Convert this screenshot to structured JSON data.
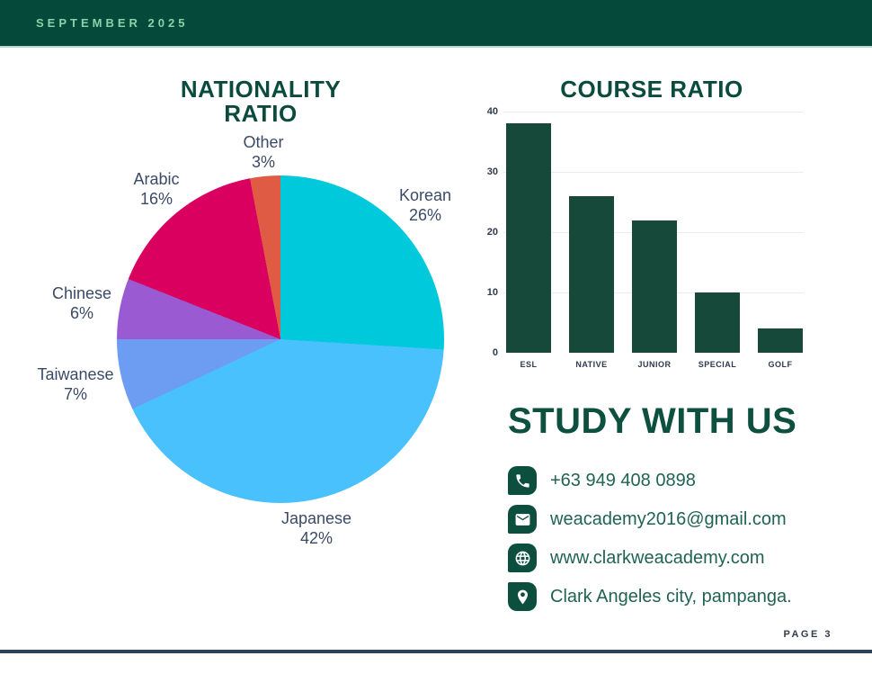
{
  "header": {
    "date": "SEPTEMBER 2025"
  },
  "page": {
    "label": "PAGE 3"
  },
  "colors": {
    "header_bg": "#05493a",
    "header_text": "#85d4aa",
    "title_green": "#0b4b3e",
    "label_slate": "#3b4a66",
    "contact_text": "#206352",
    "icon_bg": "#0d4f3f",
    "bottom_line": "#2e4156"
  },
  "chart_data": [
    {
      "type": "pie",
      "title": "NATIONALITY RATIO",
      "start_angle_deg": 0,
      "direction": "clockwise",
      "slices": [
        {
          "label": "Korean",
          "value": 26,
          "pct": "26%",
          "color": "#00c9dc"
        },
        {
          "label": "Japanese",
          "value": 42,
          "pct": "42%",
          "color": "#49c1fd"
        },
        {
          "label": "Taiwanese",
          "value": 7,
          "pct": "7%",
          "color": "#6c9df3"
        },
        {
          "label": "Chinese",
          "value": 6,
          "pct": "6%",
          "color": "#9a5ad1"
        },
        {
          "label": "Arabic",
          "value": 16,
          "pct": "16%",
          "color": "#da0060"
        },
        {
          "label": "Other",
          "value": 3,
          "pct": "3%",
          "color": "#e05b43"
        }
      ]
    },
    {
      "type": "bar",
      "title": "COURSE RATIO",
      "categories": [
        "ESL",
        "NATIVE",
        "JUNIOR",
        "SPECIAL",
        "GOLF"
      ],
      "values": [
        38,
        26,
        22,
        10,
        4
      ],
      "ylim": [
        0,
        40
      ],
      "yticks": [
        0,
        10,
        20,
        30,
        40
      ],
      "bar_color": "#17493a",
      "grid": true,
      "legend": "none"
    }
  ],
  "contact": {
    "heading": "STUDY WITH US",
    "items": [
      {
        "icon": "phone-icon",
        "text": "+63 949 408 0898"
      },
      {
        "icon": "email-icon",
        "text": "weacademy2016@gmail.com"
      },
      {
        "icon": "globe-icon",
        "text": "www.clarkweacademy.com"
      },
      {
        "icon": "location-icon",
        "text": "Clark Angeles city, pampanga."
      }
    ]
  }
}
